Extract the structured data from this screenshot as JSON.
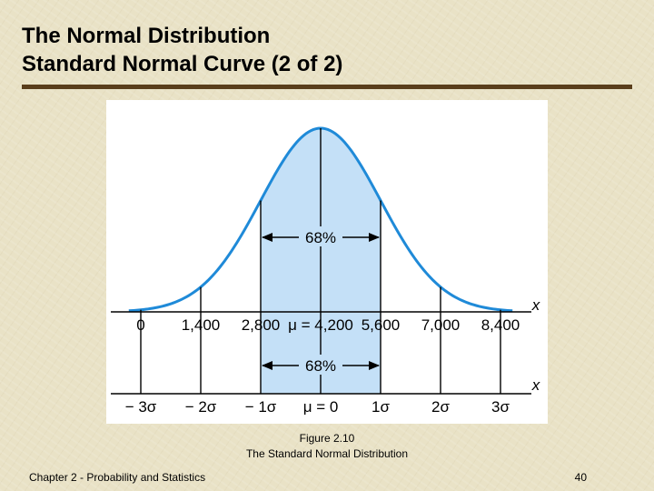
{
  "slide": {
    "title_line1": "The Normal Distribution",
    "title_line2": "Standard Normal Curve (2 of 2)",
    "caption_number": "Figure 2.10",
    "caption_text": "The Standard Normal Distribution",
    "footer_left": "Chapter 2 - Probability and Statistics",
    "page_number": "40"
  },
  "colors": {
    "shade": "#c4e0f7",
    "curve": "#1f8ad8",
    "axis": "#000000",
    "title_rule": "#5a3e1b"
  },
  "chart_data": {
    "type": "area",
    "distribution": "normal",
    "mean": 4200,
    "standard_deviation": 1400,
    "shaded_range": [
      2800,
      5600
    ],
    "axis_variable": "x",
    "top_axis_ticks": [
      "0",
      "1,400",
      "2,800",
      "μ = 4,200",
      "5,600",
      "7,000",
      "8,400"
    ],
    "bottom_axis_ticks": [
      "− 3σ",
      "− 2σ",
      "− 1σ",
      "μ = 0",
      "1σ",
      "2σ",
      "3σ"
    ],
    "bottom_axis_variable": "x",
    "annotation_top": "68%",
    "annotation_bottom": "68%"
  }
}
